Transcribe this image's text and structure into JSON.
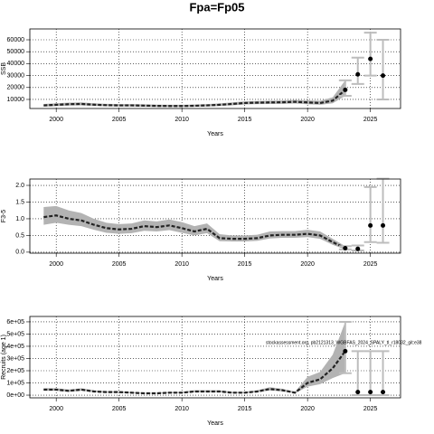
{
  "title": "Fpa=Fp05",
  "chart_data": [
    {
      "type": "line",
      "y_label": "SSB",
      "x_label": "Years",
      "xlim": [
        1997.9,
        2027.4
      ],
      "ylim": [
        2400,
        69100
      ],
      "xticks": [
        2000,
        2005,
        2010,
        2015,
        2020,
        2025
      ],
      "yticks": [
        10000,
        20000,
        30000,
        40000,
        50000,
        60000
      ],
      "grid": true,
      "x": [
        1999,
        2000,
        2001,
        2002,
        2003,
        2004,
        2005,
        2006,
        2007,
        2008,
        2009,
        2010,
        2011,
        2012,
        2013,
        2014,
        2015,
        2016,
        2017,
        2018,
        2019,
        2020,
        2021,
        2022,
        2023
      ],
      "values": [
        5000,
        5500,
        6000,
        6200,
        5600,
        5200,
        5000,
        5000,
        4800,
        4600,
        4500,
        4500,
        4700,
        5000,
        5500,
        6200,
        7000,
        7300,
        7500,
        7600,
        8000,
        7500,
        7000,
        9000,
        18000
      ],
      "lower": [
        4000,
        4400,
        4900,
        5100,
        4600,
        4300,
        4100,
        4100,
        3900,
        3700,
        3700,
        3700,
        3900,
        4100,
        4500,
        5100,
        5800,
        6100,
        6200,
        6300,
        6600,
        6000,
        5500,
        6800,
        13000
      ],
      "upper": [
        6200,
        6800,
        7300,
        7500,
        6800,
        6300,
        6100,
        6100,
        5900,
        5600,
        5500,
        5500,
        5700,
        6100,
        6700,
        7500,
        8400,
        8700,
        8900,
        9100,
        9600,
        9200,
        8800,
        11800,
        26000
      ],
      "points": {
        "x": [
          2023,
          2024,
          2025,
          2026
        ],
        "values": [
          18000,
          31000,
          44000,
          30000
        ],
        "lower": [
          13000,
          23000,
          30000,
          10000
        ],
        "upper": [
          26000,
          45000,
          66000,
          60000
        ]
      },
      "band_color": "#b3b3b3",
      "line_color": "#222222",
      "bar_color": "#bdbdbd"
    },
    {
      "type": "line",
      "y_label": "F3-5",
      "x_label": "Years",
      "xlim": [
        1997.9,
        2027.4
      ],
      "ylim": [
        -0.03,
        2.19
      ],
      "xticks": [
        2000,
        2005,
        2010,
        2015,
        2020,
        2025
      ],
      "yticks": [
        {
          "value": 0,
          "label": "0.0"
        },
        0.5,
        {
          "value": 1,
          "label": "1.0"
        },
        1.5,
        {
          "value": 2,
          "label": "2.0"
        }
      ],
      "grid": true,
      "x": [
        1999,
        2000,
        2001,
        2002,
        2003,
        2004,
        2005,
        2006,
        2007,
        2008,
        2009,
        2010,
        2011,
        2012,
        2013,
        2014,
        2015,
        2016,
        2017,
        2018,
        2019,
        2020,
        2021,
        2022,
        2023
      ],
      "values": [
        1.05,
        1.1,
        1.0,
        0.95,
        0.82,
        0.72,
        0.68,
        0.7,
        0.78,
        0.75,
        0.8,
        0.72,
        0.62,
        0.7,
        0.42,
        0.4,
        0.4,
        0.42,
        0.5,
        0.52,
        0.52,
        0.55,
        0.5,
        0.3,
        0.12
      ],
      "lower": [
        0.82,
        0.88,
        0.82,
        0.78,
        0.67,
        0.58,
        0.55,
        0.57,
        0.64,
        0.62,
        0.66,
        0.58,
        0.5,
        0.57,
        0.33,
        0.32,
        0.32,
        0.34,
        0.41,
        0.43,
        0.43,
        0.45,
        0.4,
        0.22,
        0.08
      ],
      "upper": [
        1.35,
        1.38,
        1.25,
        1.17,
        1.0,
        0.88,
        0.84,
        0.86,
        0.95,
        0.92,
        0.98,
        0.9,
        0.78,
        0.86,
        0.54,
        0.5,
        0.5,
        0.52,
        0.62,
        0.63,
        0.63,
        0.67,
        0.62,
        0.4,
        0.18
      ],
      "points": {
        "x": [
          2023,
          2024,
          2025,
          2026
        ],
        "values": [
          0.12,
          0.1,
          0.8,
          0.8
        ],
        "lower": [
          0.08,
          0.05,
          0.3,
          0.28
        ],
        "upper": [
          0.18,
          0.2,
          1.95,
          2.2
        ]
      },
      "band_color": "#b3b3b3",
      "line_color": "#222222",
      "bar_color": "#bdbdbd"
    },
    {
      "type": "line",
      "y_label": "Recruits (age 1)",
      "x_label": "Years",
      "annotation": "stockassessment.org, pb2121313_WGBFAS_2024_SPALY_tl_r18032_git:e38",
      "xlim": [
        1997.9,
        2027.4
      ],
      "ylim": [
        -22000,
        644000
      ],
      "xticks": [
        2000,
        2005,
        2010,
        2015,
        2020,
        2025
      ],
      "yticks": [
        {
          "value": 0,
          "label": "0e+00"
        },
        {
          "value": 100000,
          "label": "1e+05"
        },
        {
          "value": 200000,
          "label": "2e+05"
        },
        {
          "value": 300000,
          "label": "3e+05"
        },
        {
          "value": 400000,
          "label": "4e+05"
        },
        {
          "value": 500000,
          "label": "5e+05"
        },
        {
          "value": 600000,
          "label": "6e+05"
        }
      ],
      "grid": true,
      "x": [
        1999,
        2000,
        2001,
        2002,
        2003,
        2004,
        2005,
        2006,
        2007,
        2008,
        2009,
        2010,
        2011,
        2012,
        2013,
        2014,
        2015,
        2016,
        2017,
        2018,
        2019,
        2020,
        2021,
        2022,
        2023
      ],
      "values": [
        45000,
        45000,
        35000,
        45000,
        30000,
        25000,
        25000,
        20000,
        15000,
        15000,
        20000,
        20000,
        30000,
        30000,
        30000,
        20000,
        20000,
        30000,
        50000,
        40000,
        20000,
        100000,
        130000,
        220000,
        360000
      ],
      "lower": [
        35000,
        36000,
        27000,
        36000,
        23000,
        19000,
        19000,
        15000,
        11000,
        11000,
        15000,
        15000,
        23000,
        23000,
        23000,
        15000,
        15000,
        23000,
        39000,
        31000,
        15000,
        70000,
        90000,
        140000,
        180000
      ],
      "upper": [
        58000,
        57000,
        46000,
        57000,
        40000,
        33000,
        33000,
        27000,
        20000,
        20000,
        27000,
        27000,
        40000,
        40000,
        40000,
        27000,
        27000,
        40000,
        65000,
        52000,
        27000,
        150000,
        190000,
        330000,
        600000
      ],
      "points": {
        "x": [
          2023,
          2024,
          2025,
          2026
        ],
        "values": [
          360000,
          25000,
          25000,
          25000
        ],
        "lower": [
          180000,
          0,
          0,
          0
        ],
        "upper": [
          600000,
          360000,
          360000,
          360000
        ]
      },
      "band_color": "#b3b3b3",
      "line_color": "#222222",
      "bar_color": "#bdbdbd"
    }
  ]
}
